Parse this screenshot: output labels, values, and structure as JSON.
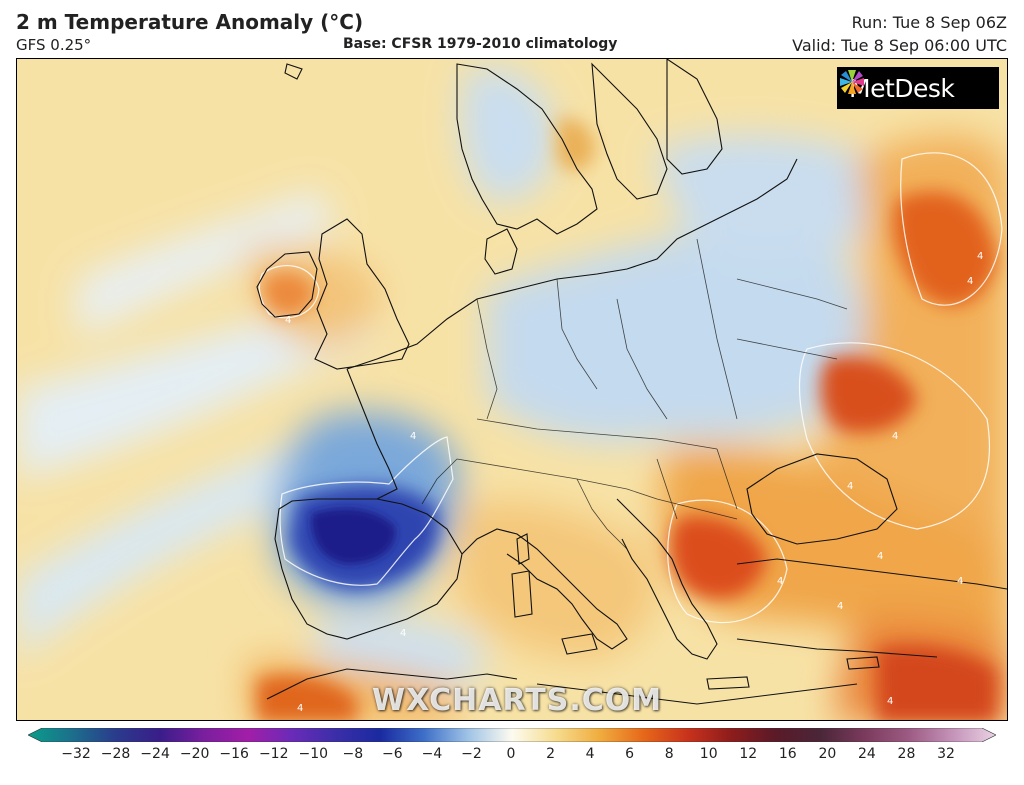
{
  "header": {
    "title": "2 m Temperature Anomaly (°C)",
    "model": "GFS 0.25°",
    "base": "Base: CFSR 1979-2010 climatology",
    "run": "Run: Tue 8 Sep 06Z",
    "valid": "Valid: Tue 8 Sep 06:00 UTC"
  },
  "logo": {
    "text": "MetDesk"
  },
  "watermark": {
    "text": "WXCHARTS.COM"
  },
  "contour_labels": [
    "4",
    "4",
    "4",
    "4",
    "4",
    "4",
    "4",
    "4",
    "4",
    "4",
    "4",
    "4",
    "4"
  ],
  "legend": {
    "unit": "°C",
    "ticks": [
      "−32",
      "−28",
      "−24",
      "−20",
      "−16",
      "−12",
      "−10",
      "−8",
      "−6",
      "−4",
      "−2",
      "0",
      "2",
      "4",
      "6",
      "8",
      "10",
      "12",
      "16",
      "20",
      "24",
      "28",
      "32"
    ],
    "colors": [
      "#0a9e8a",
      "#1c6f8c",
      "#2a3b8c",
      "#3a1d8a",
      "#7a1f9e",
      "#a21ea8",
      "#6a2bb8",
      "#3b2ea8",
      "#1a2aa0",
      "#3e6fc8",
      "#9fc3e6",
      "#fdfbf0",
      "#f6dc8e",
      "#f0ac3e",
      "#e6671a",
      "#c8321c",
      "#8c1c1c",
      "#5a1a28",
      "#4a2638",
      "#7a3a5c",
      "#9c5a82",
      "#c492b8",
      "#ead2e4"
    ]
  }
}
